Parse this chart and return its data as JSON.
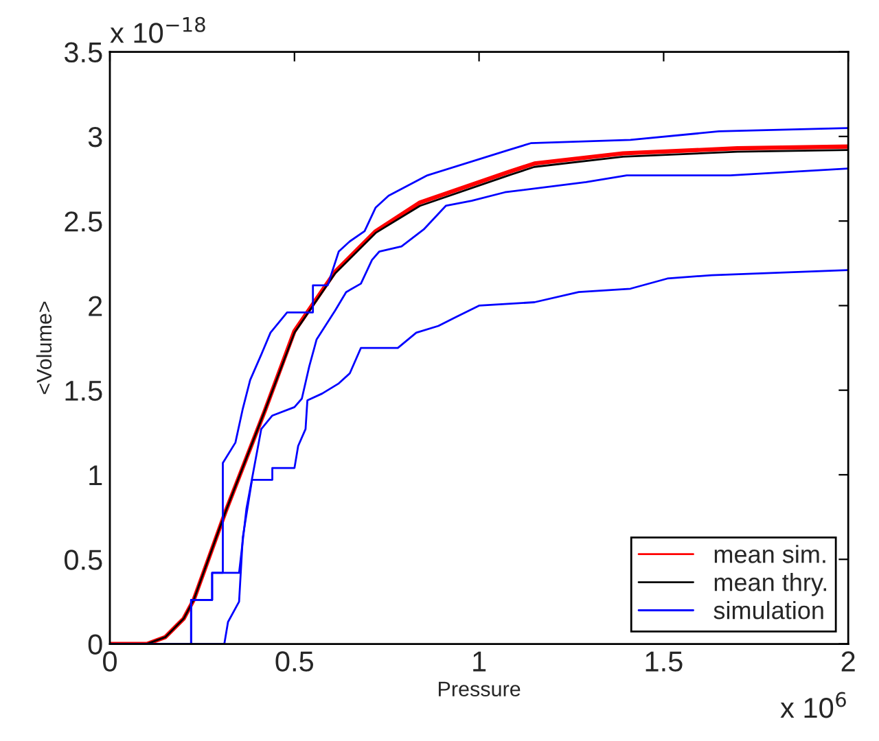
{
  "chart_data": {
    "type": "line",
    "xlabel": "Pressure",
    "ylabel": "<Volume>",
    "xlim": [
      0,
      2
    ],
    "xticks": [
      0,
      0.5,
      1,
      1.5,
      2
    ],
    "ylim": [
      0,
      3.5
    ],
    "yticks": [
      0,
      0.5,
      1,
      1.5,
      2,
      2.5,
      3,
      3.5
    ],
    "annotations": [
      "x 10$^{−18}$",
      "x 10$^{6}$"
    ],
    "grid": false,
    "legend": "bottom right",
    "marker": "none",
    "line_style": "solid",
    "series": [
      {
        "name": "mean sim.",
        "color": "#ff0000",
        "x": [
          0,
          0.1,
          0.15,
          0.2,
          0.227,
          0.313,
          0.42,
          0.5,
          0.61,
          0.72,
          0.84,
          1.08,
          1.15,
          1.39,
          1.7,
          2.0
        ],
        "values": [
          0,
          0,
          0.04,
          0.15,
          0.26,
          0.78,
          1.38,
          1.85,
          2.2,
          2.44,
          2.61,
          2.79,
          2.84,
          2.9,
          2.93,
          2.94
        ]
      },
      {
        "name": "mean thry.",
        "color": "#000000",
        "x": [
          0,
          0.1,
          0.15,
          0.2,
          0.227,
          0.313,
          0.42,
          0.5,
          0.61,
          0.72,
          0.84,
          1.08,
          1.15,
          1.39,
          1.7,
          2.0
        ],
        "values": [
          0,
          0,
          0.04,
          0.15,
          0.26,
          0.78,
          1.38,
          1.84,
          2.19,
          2.43,
          2.59,
          2.77,
          2.82,
          2.88,
          2.91,
          2.92
        ]
      },
      {
        "name": "simulation",
        "color": "#0000ff",
        "x": [
          0,
          0.22,
          0.22,
          0.277,
          0.277,
          0.306,
          0.306,
          0.34,
          0.36,
          0.38,
          0.41,
          0.435,
          0.48,
          0.55,
          0.55,
          0.59,
          0.62,
          0.65,
          0.69,
          0.72,
          0.755,
          0.86,
          1.08,
          1.14,
          1.41,
          1.65,
          2.0
        ],
        "values": [
          0,
          0,
          0.26,
          0.26,
          0.42,
          0.42,
          1.07,
          1.19,
          1.39,
          1.56,
          1.71,
          1.84,
          1.96,
          1.96,
          2.12,
          2.12,
          2.32,
          2.38,
          2.44,
          2.58,
          2.65,
          2.77,
          2.92,
          2.96,
          2.98,
          3.03,
          3.05
        ]
      },
      {
        "color": "#0000ff",
        "x": [
          0,
          0.22,
          0.22,
          0.277,
          0.277,
          0.35,
          0.37,
          0.41,
          0.44,
          0.5,
          0.52,
          0.54,
          0.56,
          0.61,
          0.64,
          0.68,
          0.71,
          0.73,
          0.79,
          0.85,
          0.91,
          0.98,
          1.07,
          1.29,
          1.4,
          1.68,
          2.0
        ],
        "values": [
          0,
          0,
          0.26,
          0.26,
          0.42,
          0.42,
          0.8,
          1.27,
          1.35,
          1.4,
          1.45,
          1.64,
          1.8,
          1.97,
          2.08,
          2.13,
          2.27,
          2.32,
          2.35,
          2.45,
          2.59,
          2.62,
          2.67,
          2.73,
          2.77,
          2.77,
          2.81
        ]
      },
      {
        "color": "#0000ff",
        "x": [
          0,
          0.31,
          0.32,
          0.35,
          0.36,
          0.385,
          0.44,
          0.44,
          0.5,
          0.51,
          0.53,
          0.535,
          0.575,
          0.62,
          0.65,
          0.68,
          0.78,
          0.83,
          0.89,
          0.935,
          1.0,
          1.15,
          1.27,
          1.41,
          1.51,
          1.63,
          2.0
        ],
        "values": [
          0,
          0,
          0.13,
          0.25,
          0.63,
          0.97,
          0.97,
          1.04,
          1.04,
          1.17,
          1.27,
          1.44,
          1.48,
          1.54,
          1.6,
          1.75,
          1.75,
          1.84,
          1.88,
          1.93,
          2.0,
          2.02,
          2.08,
          2.1,
          2.16,
          2.18,
          2.21
        ]
      }
    ]
  }
}
